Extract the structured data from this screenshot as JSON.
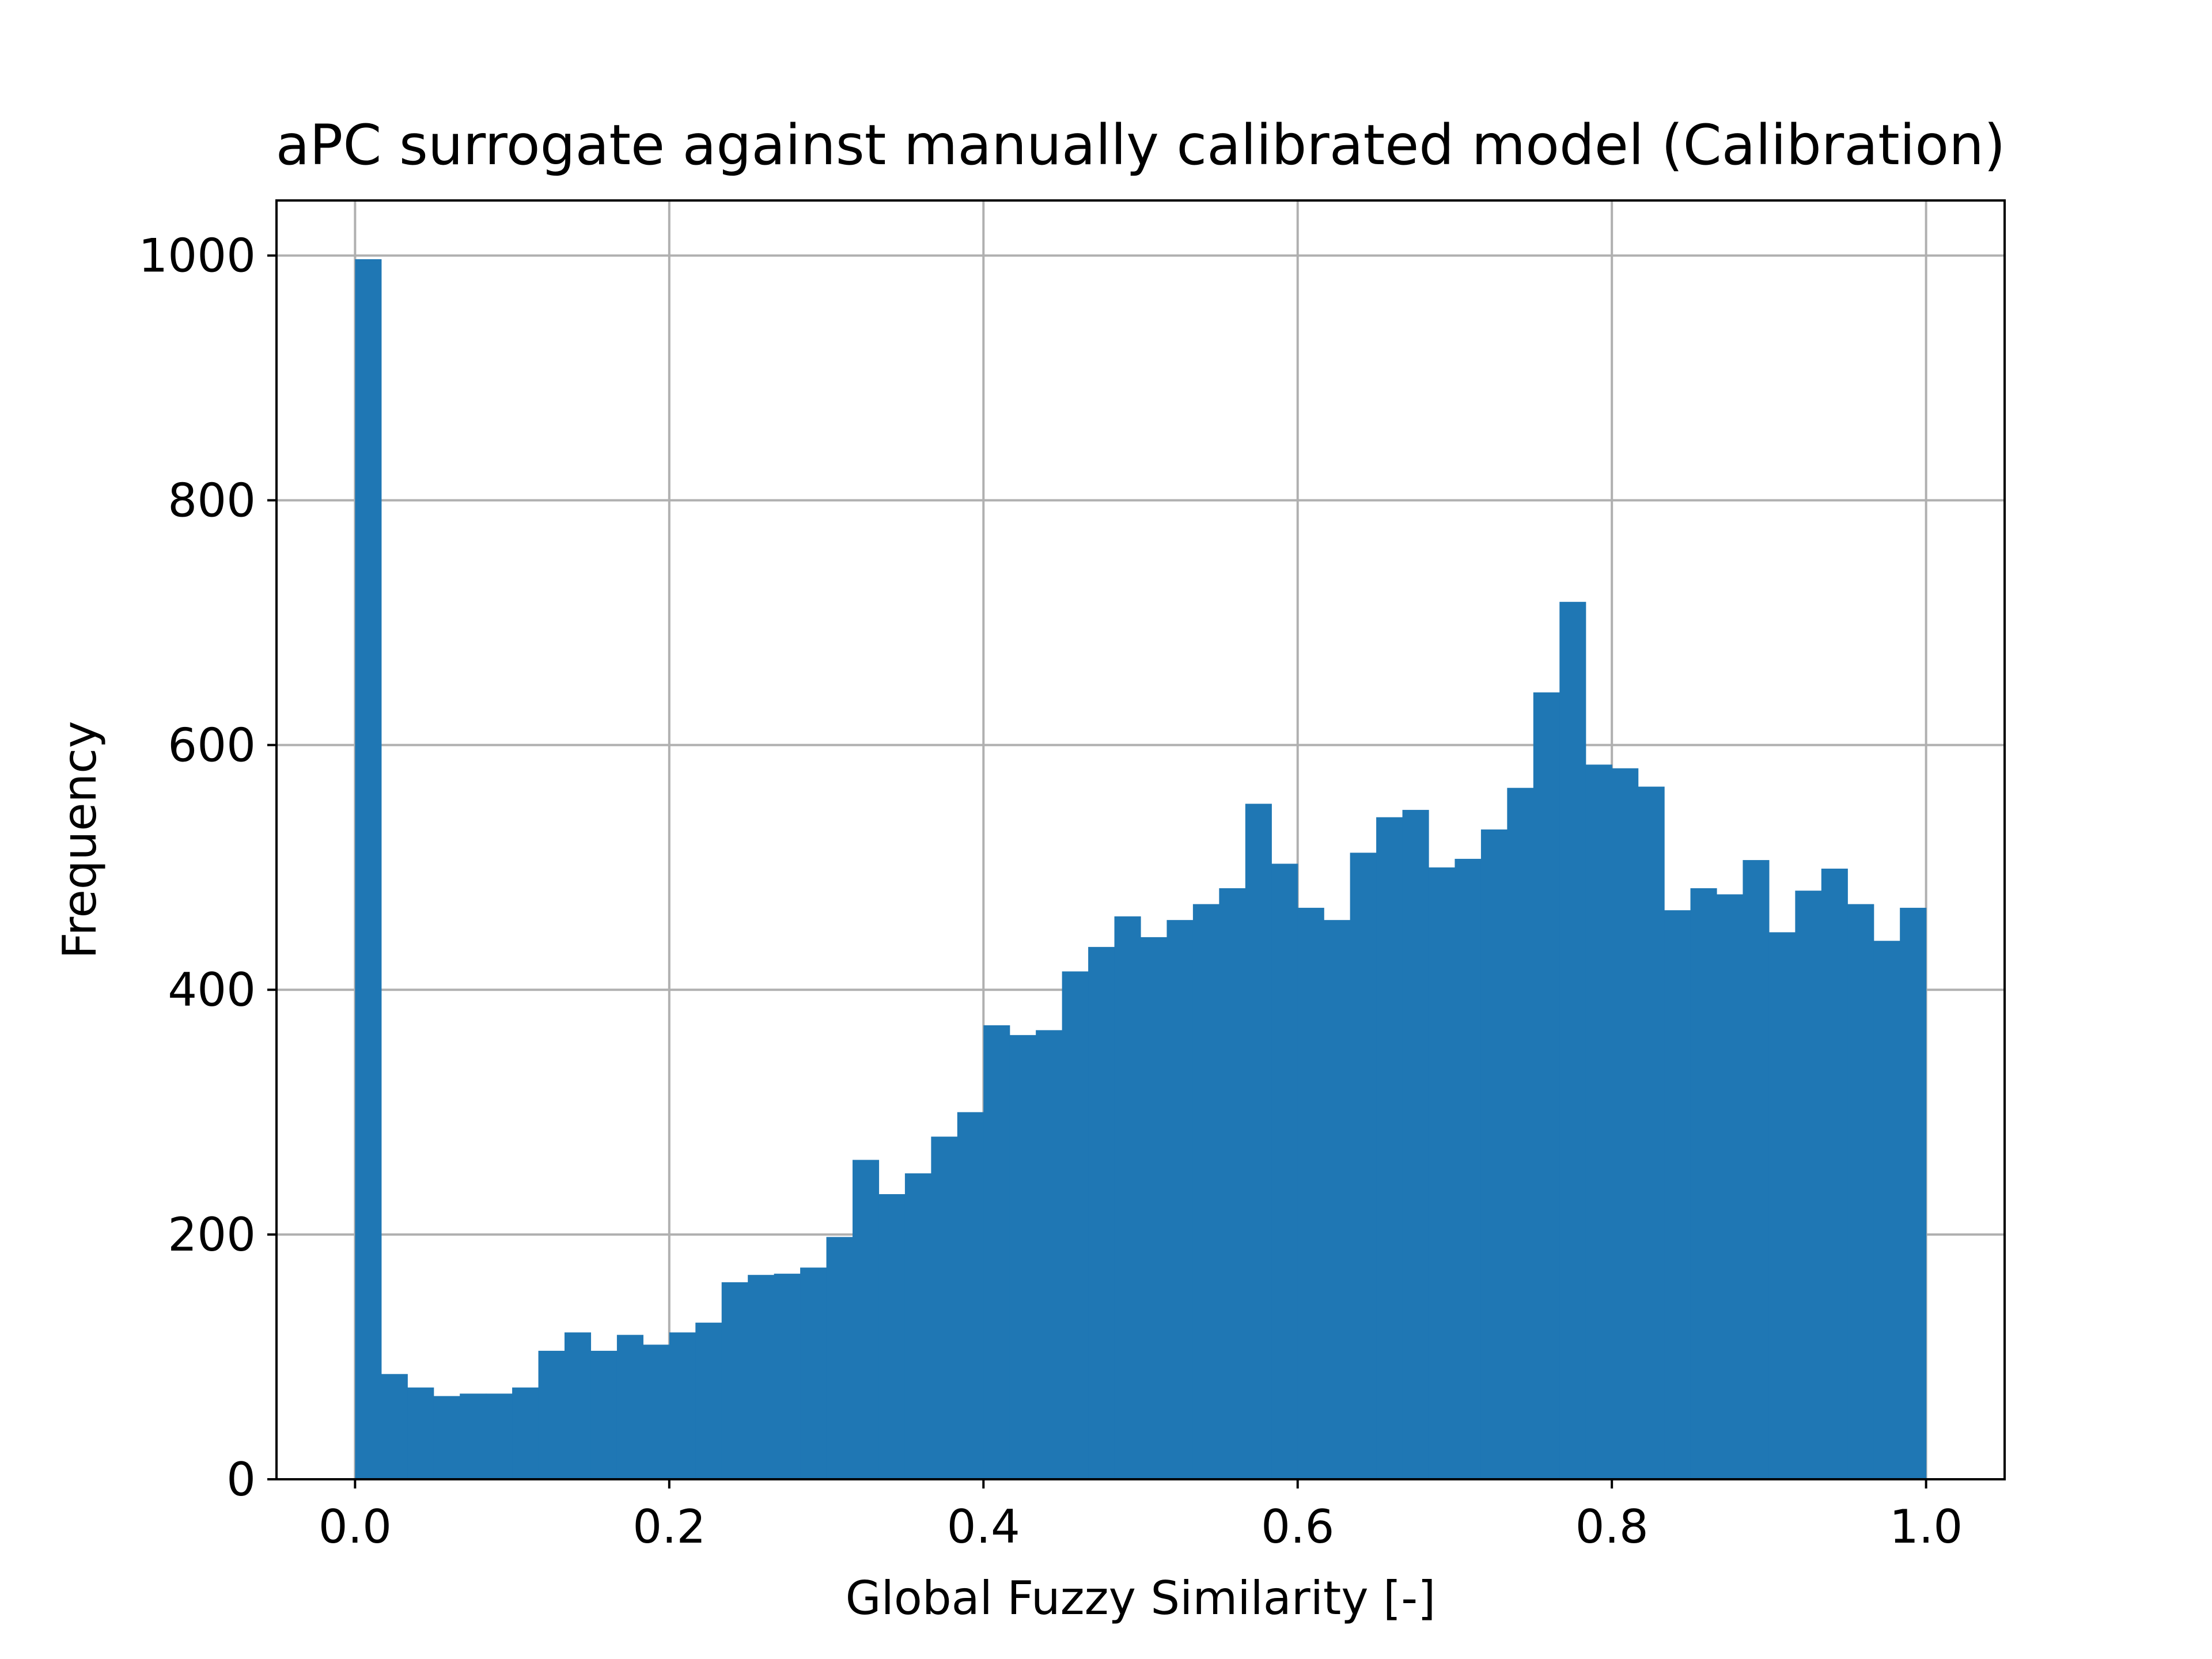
{
  "chart_data": {
    "type": "bar",
    "title": "aPC surrogate against manually calibrated model (Calibration)",
    "xlabel": "Global Fuzzy Similarity [-]",
    "ylabel": "Frequency",
    "xlim": [
      -0.05,
      1.05
    ],
    "ylim": [
      0,
      1045
    ],
    "xticks": [
      0.0,
      0.2,
      0.4,
      0.6,
      0.8,
      1.0
    ],
    "xtick_labels": [
      "0.0",
      "0.2",
      "0.4",
      "0.6",
      "0.8",
      "1.0"
    ],
    "yticks": [
      0,
      200,
      400,
      600,
      800,
      1000
    ],
    "ytick_labels": [
      "0",
      "200",
      "400",
      "600",
      "800",
      "1000"
    ],
    "grid": true,
    "legend": "none",
    "bar_color": "#1f77b4",
    "bin_width": 0.01667,
    "bin_starts": [
      0.0,
      0.01667,
      0.03333,
      0.05,
      0.06667,
      0.08333,
      0.1,
      0.11667,
      0.13333,
      0.15,
      0.16667,
      0.18333,
      0.2,
      0.21667,
      0.23333,
      0.25,
      0.26667,
      0.28333,
      0.3,
      0.31667,
      0.33333,
      0.35,
      0.36667,
      0.38333,
      0.4,
      0.41667,
      0.43333,
      0.45,
      0.46667,
      0.48333,
      0.5,
      0.51667,
      0.53333,
      0.55,
      0.56667,
      0.58333,
      0.6,
      0.61667,
      0.63333,
      0.65,
      0.66667,
      0.68333,
      0.7,
      0.71667,
      0.73333,
      0.75,
      0.76667,
      0.78333,
      0.8,
      0.81667,
      0.83333,
      0.85,
      0.86667,
      0.88333,
      0.9,
      0.91667,
      0.93333,
      0.95,
      0.96667,
      0.98333
    ],
    "values": [
      997,
      86,
      75,
      68,
      70,
      70,
      75,
      105,
      120,
      105,
      118,
      110,
      120,
      128,
      161,
      167,
      168,
      173,
      198,
      261,
      233,
      250,
      280,
      300,
      371,
      363,
      367,
      415,
      435,
      460,
      443,
      457,
      470,
      483,
      552,
      503,
      467,
      457,
      512,
      541,
      547,
      500,
      507,
      531,
      565,
      643,
      717,
      584,
      581,
      566,
      465,
      483,
      478,
      506,
      447,
      481,
      499,
      470,
      440,
      467
    ]
  }
}
